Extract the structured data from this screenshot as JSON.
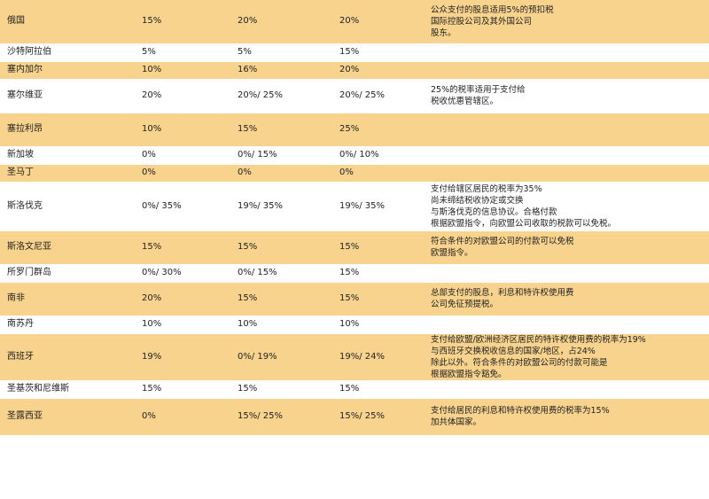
{
  "rows": [
    {
      "country": "俄国",
      "dividends": "15%",
      "interest": "20%",
      "royalties": "20%",
      "notes": [
        "公众支付的股息适用5%的预扣税",
        "国际控股公司及其外国公司",
        "股东。"
      ]
    },
    {
      "country": "沙特阿拉伯",
      "dividends": "5%",
      "interest": "5%",
      "royalties": "15%",
      "notes": []
    },
    {
      "country": "塞内加尔",
      "dividends": "10%",
      "interest": "16%",
      "royalties": "20%",
      "notes": []
    },
    {
      "country": "塞尔维亚",
      "dividends": "20%",
      "interest": "20%/ 25%",
      "royalties": "20%/ 25%",
      "notes": [
        "25%的税率适用于支付给",
        "税收优惠管辖区。"
      ]
    },
    {
      "country": "塞拉利昂",
      "dividends": "10%",
      "interest": "15%",
      "royalties": "25%",
      "notes": []
    },
    {
      "country": "新加坡",
      "dividends": "0%",
      "interest": "0%/ 15%",
      "royalties": "0%/ 10%",
      "notes": []
    },
    {
      "country": "圣马丁",
      "dividends": "0%",
      "interest": "0%",
      "royalties": "0%",
      "notes": []
    },
    {
      "country": "斯洛伐克",
      "dividends": "0%/ 35%",
      "interest": "19%/ 35%",
      "royalties": "19%/ 35%",
      "notes": [
        "支付给辖区居民的税率为35%",
        "尚未缔结税收协定或交换",
        "与斯洛伐克的信息协议。合格付款",
        "根据欧盟指令，向欧盟公司收取的税款可以免税。"
      ]
    },
    {
      "country": "斯洛文尼亚",
      "dividends": "15%",
      "interest": "15%",
      "royalties": "15%",
      "notes": [
        "符合条件的对欧盟公司的付款可以免税",
        "欧盟指令。"
      ]
    },
    {
      "country": "所罗门群岛",
      "dividends": "0%/ 30%",
      "interest": "0%/ 15%",
      "royalties": "15%",
      "notes": []
    },
    {
      "country": "南非",
      "dividends": "20%",
      "interest": "15%",
      "royalties": "15%",
      "notes": [
        "总部支付的股息，利息和特许权使用费",
        "公司免征预提税。"
      ]
    },
    {
      "country": "南苏丹",
      "dividends": "10%",
      "interest": "10%",
      "royalties": "10%",
      "notes": []
    },
    {
      "country": "西班牙",
      "dividends": "19%",
      "interest": "0%/ 19%",
      "royalties": "19%/ 24%",
      "notes": [
        "支付给欧盟/欧洲经济区居民的特许权使用费的税率为19%",
        "与西班牙交换税收信息的国家/地区，占24%",
        "除此以外。符合条件的对欧盟公司的付款可能是",
        "根据欧盟指令豁免。"
      ]
    },
    {
      "country": "圣基茨和尼维斯",
      "dividends": "15%",
      "interest": "15%",
      "royalties": "15%",
      "notes": []
    },
    {
      "country": "圣露西亚",
      "dividends": "0%",
      "interest": "15%/ 25%",
      "royalties": "15%/ 25%",
      "notes": [
        "支付给居民的利息和特许权使用费的税率为15%",
        "加共体国家。"
      ]
    }
  ]
}
